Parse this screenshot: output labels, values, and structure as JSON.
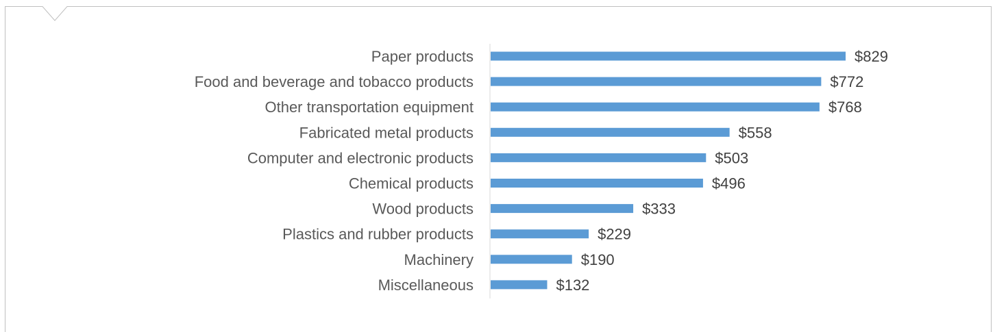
{
  "colors": {
    "bar": "#5b9bd5",
    "axis": "#d9d9d9",
    "panel_border": "#bfbfbf",
    "category_text": "#595959",
    "value_text": "#404040"
  },
  "chart_data": {
    "type": "bar",
    "orientation": "horizontal",
    "title": "",
    "xlabel": "",
    "ylabel": "",
    "categories": [
      "Paper products",
      "Food and beverage and tobacco products",
      "Other transportation equipment",
      "Fabricated metal products",
      "Computer and electronic products",
      "Chemical products",
      "Wood products",
      "Plastics and rubber products",
      "Machinery",
      "Miscellaneous"
    ],
    "values": [
      829,
      772,
      768,
      558,
      503,
      496,
      333,
      229,
      190,
      132
    ],
    "data_labels": [
      "$829",
      "$772",
      "$768",
      "$558",
      "$503",
      "$496",
      "$333",
      "$229",
      "$190",
      "$132"
    ],
    "xlim": [
      0,
      900
    ],
    "grid": false,
    "legend": "none"
  }
}
